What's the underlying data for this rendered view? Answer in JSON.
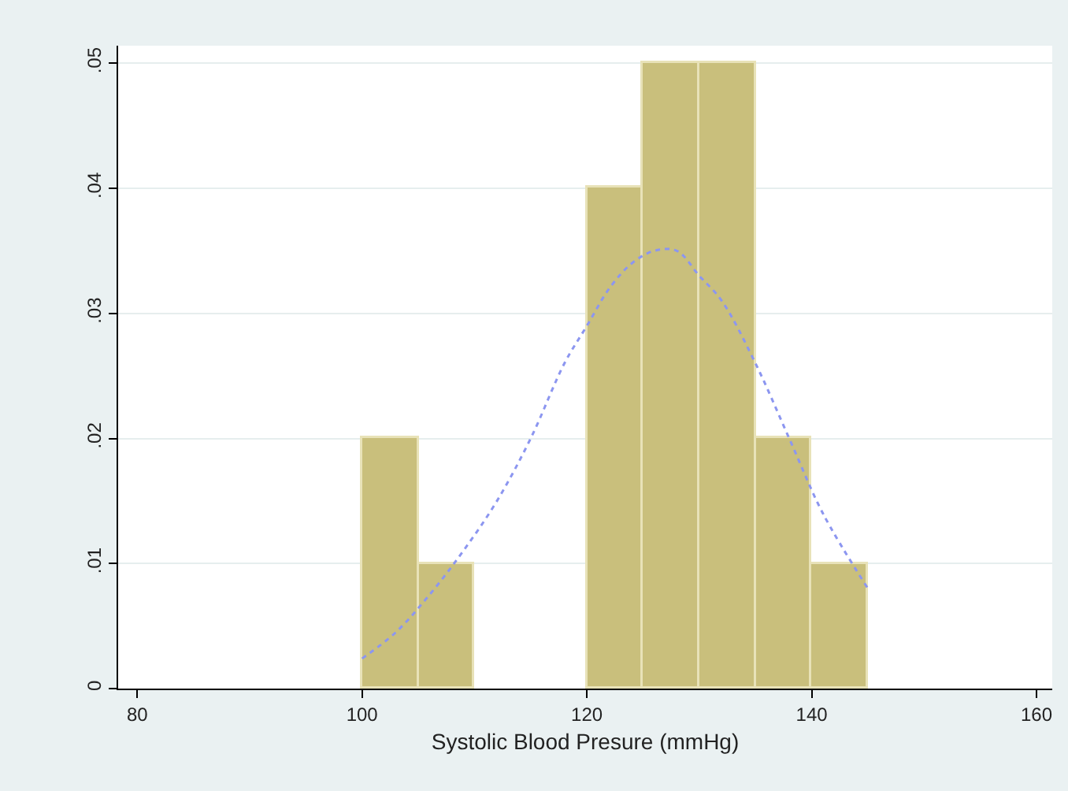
{
  "chart_data": {
    "type": "histogram",
    "xlabel": "Systolic Blood Presure (mmHg)",
    "bins": [
      100,
      105,
      110,
      115,
      120,
      125,
      130,
      135,
      140,
      145
    ],
    "values": [
      0.02,
      0.01,
      0,
      0,
      0.04,
      0.05,
      0.05,
      0.02,
      0.01
    ],
    "color": "#c9bf7c",
    "series": [
      {
        "type": "line",
        "color": "#8c96f0",
        "line_style": "dotted",
        "marker": "none",
        "x": [
          100,
          103,
          106,
          109,
          112,
          115,
          118,
          120,
          122,
          124,
          126,
          128,
          130,
          132,
          135,
          138,
          141,
          145
        ],
        "values": [
          0.0024,
          0.0045,
          0.0075,
          0.011,
          0.015,
          0.02,
          0.026,
          0.029,
          0.032,
          0.034,
          0.035,
          0.035,
          0.033,
          0.031,
          0.026,
          0.02,
          0.014,
          0.008
        ]
      }
    ],
    "xlim": [
      78.3,
      161.4
    ],
    "xticks": [
      80,
      100,
      120,
      140,
      160
    ],
    "ylim": [
      0,
      0.0514
    ],
    "yticks": [
      {
        "value": 0,
        "label": "0"
      },
      {
        "value": 0.01,
        "label": ".01"
      },
      {
        "value": 0.02,
        "label": ".02"
      },
      {
        "value": 0.03,
        "label": ".03"
      },
      {
        "value": 0.04,
        "label": ".04"
      },
      {
        "value": 0.05,
        "label": ".05"
      }
    ],
    "grid": "y"
  }
}
